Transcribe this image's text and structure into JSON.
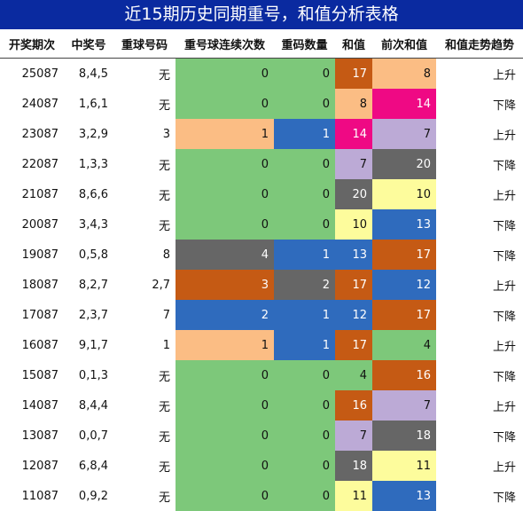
{
  "title": "近15期历史同期重号，和值分析表格",
  "headers": [
    "开奖期次",
    "中奖号",
    "重球号码",
    "重号球连续次数",
    "重码数量",
    "和值",
    "前次和值",
    "和值走势趋势"
  ],
  "colors": {
    "green": "#7dc87a",
    "blue": "#2f6bbd",
    "gray": "#666666",
    "orange": "#c55a14",
    "peach": "#fbbd84",
    "lavender": "#bcaad6",
    "yellow": "#fdfc9c",
    "pink": "#ef0984",
    "title_bg": "#0a2aa0"
  },
  "rows": [
    {
      "period": "25087",
      "numbers": "8,4,5",
      "repeat": "无",
      "consecutive": "0",
      "cons_color": "green",
      "count": "0",
      "count_color": "green",
      "sum": "17",
      "sum_color": "orange",
      "prev_sum": "8",
      "prev_color": "peach",
      "trend": "上升"
    },
    {
      "period": "24087",
      "numbers": "1,6,1",
      "repeat": "无",
      "consecutive": "0",
      "cons_color": "green",
      "count": "0",
      "count_color": "green",
      "sum": "8",
      "sum_color": "peach",
      "prev_sum": "14",
      "prev_color": "pink",
      "trend": "下降"
    },
    {
      "period": "23087",
      "numbers": "3,2,9",
      "repeat": "3",
      "consecutive": "1",
      "cons_color": "peach",
      "count": "1",
      "count_color": "blue",
      "sum": "14",
      "sum_color": "pink",
      "prev_sum": "7",
      "prev_color": "lavender",
      "trend": "上升"
    },
    {
      "period": "22087",
      "numbers": "1,3,3",
      "repeat": "无",
      "consecutive": "0",
      "cons_color": "green",
      "count": "0",
      "count_color": "green",
      "sum": "7",
      "sum_color": "lavender",
      "prev_sum": "20",
      "prev_color": "gray",
      "trend": "下降"
    },
    {
      "period": "21087",
      "numbers": "8,6,6",
      "repeat": "无",
      "consecutive": "0",
      "cons_color": "green",
      "count": "0",
      "count_color": "green",
      "sum": "20",
      "sum_color": "gray",
      "prev_sum": "10",
      "prev_color": "yellow",
      "trend": "上升"
    },
    {
      "period": "20087",
      "numbers": "3,4,3",
      "repeat": "无",
      "consecutive": "0",
      "cons_color": "green",
      "count": "0",
      "count_color": "green",
      "sum": "10",
      "sum_color": "yellow",
      "prev_sum": "13",
      "prev_color": "blue",
      "trend": "下降"
    },
    {
      "period": "19087",
      "numbers": "0,5,8",
      "repeat": "8",
      "consecutive": "4",
      "cons_color": "gray",
      "count": "1",
      "count_color": "blue",
      "sum": "13",
      "sum_color": "blue",
      "prev_sum": "17",
      "prev_color": "orange",
      "trend": "下降"
    },
    {
      "period": "18087",
      "numbers": "8,2,7",
      "repeat": "2,7",
      "consecutive": "3",
      "cons_color": "orange",
      "count": "2",
      "count_color": "gray",
      "sum": "17",
      "sum_color": "orange",
      "prev_sum": "12",
      "prev_color": "blue",
      "trend": "上升"
    },
    {
      "period": "17087",
      "numbers": "2,3,7",
      "repeat": "7",
      "consecutive": "2",
      "cons_color": "blue",
      "count": "1",
      "count_color": "blue",
      "sum": "12",
      "sum_color": "blue",
      "prev_sum": "17",
      "prev_color": "orange",
      "trend": "下降"
    },
    {
      "period": "16087",
      "numbers": "9,1,7",
      "repeat": "1",
      "consecutive": "1",
      "cons_color": "peach",
      "count": "1",
      "count_color": "blue",
      "sum": "17",
      "sum_color": "orange",
      "prev_sum": "4",
      "prev_color": "green",
      "trend": "上升"
    },
    {
      "period": "15087",
      "numbers": "0,1,3",
      "repeat": "无",
      "consecutive": "0",
      "cons_color": "green",
      "count": "0",
      "count_color": "green",
      "sum": "4",
      "sum_color": "green",
      "prev_sum": "16",
      "prev_color": "orange",
      "trend": "下降"
    },
    {
      "period": "14087",
      "numbers": "8,4,4",
      "repeat": "无",
      "consecutive": "0",
      "cons_color": "green",
      "count": "0",
      "count_color": "green",
      "sum": "16",
      "sum_color": "orange",
      "prev_sum": "7",
      "prev_color": "lavender",
      "trend": "上升"
    },
    {
      "period": "13087",
      "numbers": "0,0,7",
      "repeat": "无",
      "consecutive": "0",
      "cons_color": "green",
      "count": "0",
      "count_color": "green",
      "sum": "7",
      "sum_color": "lavender",
      "prev_sum": "18",
      "prev_color": "gray",
      "trend": "下降"
    },
    {
      "period": "12087",
      "numbers": "6,8,4",
      "repeat": "无",
      "consecutive": "0",
      "cons_color": "green",
      "count": "0",
      "count_color": "green",
      "sum": "18",
      "sum_color": "gray",
      "prev_sum": "11",
      "prev_color": "yellow",
      "trend": "上升"
    },
    {
      "period": "11087",
      "numbers": "0,9,2",
      "repeat": "无",
      "consecutive": "0",
      "cons_color": "green",
      "count": "0",
      "count_color": "green",
      "sum": "11",
      "sum_color": "yellow",
      "prev_sum": "13",
      "prev_color": "blue",
      "trend": "下降"
    }
  ]
}
